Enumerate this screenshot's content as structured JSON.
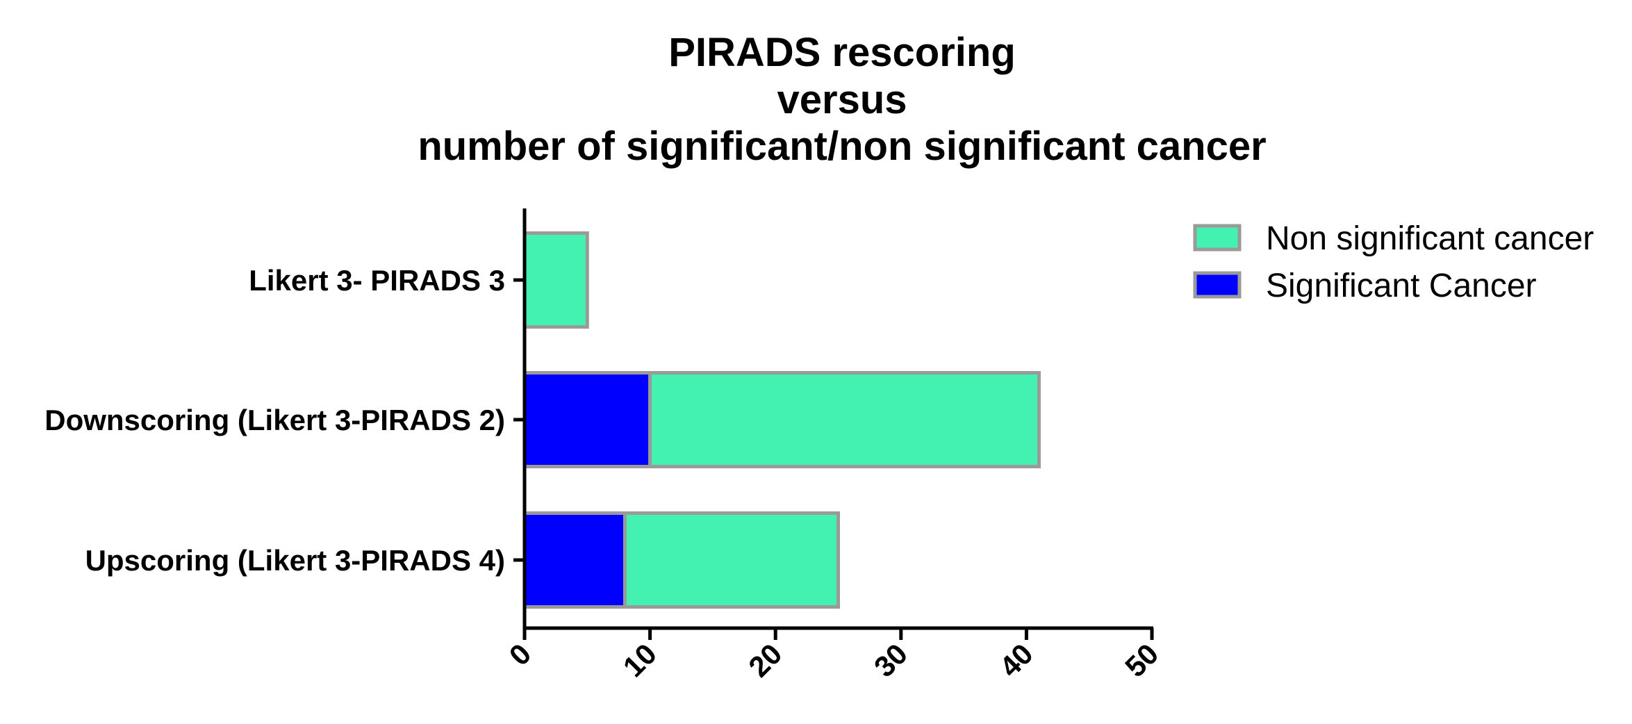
{
  "chart_data": {
    "type": "bar",
    "orientation": "horizontal",
    "stacked": true,
    "title_lines": [
      "PIRADS rescoring",
      "versus",
      "number of significant/non significant cancer"
    ],
    "categories": [
      "Likert 3- PIRADS 3",
      "Downscoring (Likert 3-PIRADS 2)",
      "Upscoring (Likert 3-PIRADS 4)"
    ],
    "series": [
      {
        "name": "Significant Cancer",
        "values": [
          0,
          10,
          8
        ],
        "color": "#0000FF"
      },
      {
        "name": "Non significant cancer",
        "values": [
          5,
          31,
          17
        ],
        "color": "#43F2B0"
      }
    ],
    "xlim": [
      0,
      50
    ],
    "xticks": [
      "0",
      "10",
      "20",
      "30",
      "40",
      "50"
    ],
    "legend": {
      "position": "top-right",
      "entries": [
        {
          "label": "Non significant cancer",
          "color": "#43F2B0"
        },
        {
          "label": "Significant Cancer",
          "color": "#0000FF"
        }
      ]
    },
    "bar_edge_color": "#9A9A9A",
    "grid": false
  }
}
